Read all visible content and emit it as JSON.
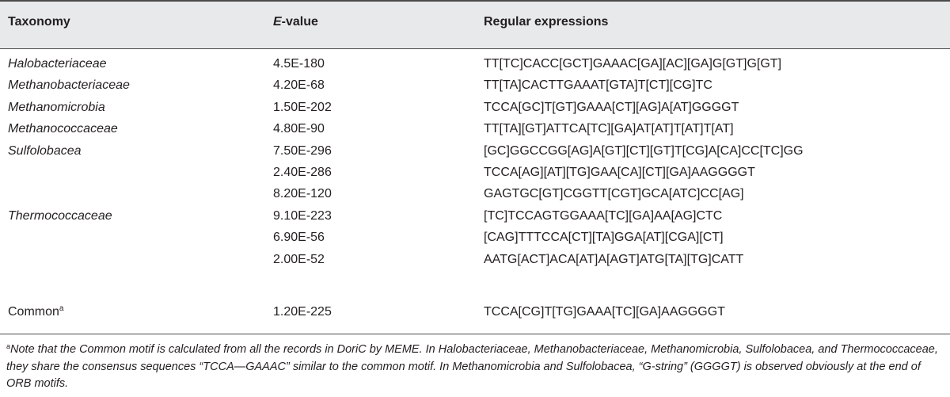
{
  "table": {
    "headers": {
      "taxonomy": "Taxonomy",
      "evalue_italic": "E",
      "evalue_rest": "-value",
      "regex": "Regular expressions"
    },
    "rows": [
      {
        "taxonomy": "Halobacteriaceae",
        "evalue": "4.5E-180",
        "regex": "TT[TC]CACC[GCT]GAAAC[GA][AC][GA]G[GT]G[GT]"
      },
      {
        "taxonomy": "Methanobacteriaceae",
        "evalue": "4.20E-68",
        "regex": "TT[TA]CACTTGAAAT[GTA]T[CT][CG]TC"
      },
      {
        "taxonomy": "Methanomicrobia",
        "evalue": "1.50E-202",
        "regex": "TCCA[GC]T[GT]GAAA[CT][AG]A[AT]GGGGT"
      },
      {
        "taxonomy": "Methanococcaceae",
        "evalue": "4.80E-90",
        "regex": "TT[TA][GT]ATTCA[TC][GA]AT[AT]T[AT]T[AT]"
      },
      {
        "taxonomy": "Sulfolobacea",
        "evalue": "7.50E-296",
        "regex": "[GC]GGCCGG[AG]A[GT][CT][GT]T[CG]A[CA]CC[TC]GG"
      },
      {
        "taxonomy": "",
        "evalue": "2.40E-286",
        "regex": "TCCA[AG][AT][TG]GAA[CA][CT][GA]AAGGGGT"
      },
      {
        "taxonomy": "",
        "evalue": "8.20E-120",
        "regex": "GAGTGC[GT]CGGTT[CGT]GCA[ATC]CC[AG]"
      },
      {
        "taxonomy": "Thermococcaceae",
        "evalue": "9.10E-223",
        "regex": "[TC]TCCAGTGGAAA[TC][GA]AA[AG]CTC"
      },
      {
        "taxonomy": "",
        "evalue": "6.90E-56",
        "regex": "[CAG]TTTCCA[CT][TA]GGA[AT][CGA][CT]"
      },
      {
        "taxonomy": "",
        "evalue": "2.00E-52",
        "regex": "AATG[ACT]ACA[AT]A[AGT]ATG[TA][TG]CATT"
      }
    ],
    "common_row": {
      "taxonomy": "Common",
      "sup": "a",
      "evalue": "1.20E-225",
      "regex": "TCCA[CG]T[TG]GAAA[TC][GA]AAGGGGT"
    }
  },
  "footnote": {
    "marker": "a",
    "text": "Note that the Common motif is calculated from all the records in DoriC by MEME. In Halobacteriaceae, Methanobacteriaceae, Methanomicrobia, Sulfolobacea, and Thermococcaceae, they share the consensus sequences “TCCA—GAAAC” similar to the common motif. In Methanomicrobia and Sulfolobacea, “G-string” (GGGGT) is observed obviously at the end of ORB motifs."
  }
}
